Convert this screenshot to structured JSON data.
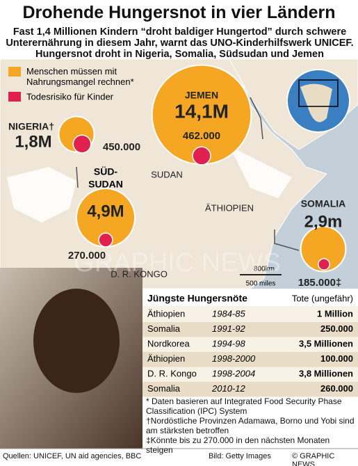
{
  "title": "Drohende Hungersnot in vier Ländern",
  "subtitle": "Fast 1,4 Millionen Kindern “droht baldiger Hungertod” durch schwere Unterernährung in diesem Jahr, warnt das UNO-Kinderhilfswerk UNICEF. Hungersnot droht in Nigeria, Somalia, Südsudan und Jemen",
  "legend": [
    "Menschen müssen mit Nahrungsmangel rechnen*",
    "Todesrisiko für Kinder"
  ],
  "countries": [
    {
      "name": "NIGERIA†",
      "value": 1800000,
      "value_label": "1,8M",
      "at_risk": 450000,
      "at_risk_label": "450.000"
    },
    {
      "name": "SÜD-SUDAN",
      "value": 4900000,
      "value_label": "4,9M",
      "at_risk": 270000,
      "at_risk_label": "270.000"
    },
    {
      "name": "JEMEN",
      "value": 14100000,
      "value_label": "14,1M",
      "at_risk": 462000,
      "at_risk_label": "462.000"
    },
    {
      "name": "SOMALIA",
      "value": 2900000,
      "value_label": "2,9m",
      "at_risk": 185000,
      "at_risk_label": "185.000‡"
    }
  ],
  "map_labels": [
    "SUDAN",
    "ÄTHIOPIEN",
    "D. R. KONGO"
  ],
  "scale": [
    "800km",
    "500 miles"
  ],
  "watermark": "GRAPHIC NEWS",
  "table": {
    "title": "Jüngste Hungersnöte",
    "column": "Tote (ungefähr)",
    "rows": [
      [
        "Äthiopien",
        "1984-85",
        "1 Million"
      ],
      [
        "Somalia",
        "1991-92",
        "250.000"
      ],
      [
        "Nordkorea",
        "1994-98",
        "3,5 Millionen"
      ],
      [
        "Äthiopien",
        "1998-2000",
        "100.000"
      ],
      [
        "D. R. Kongo",
        "1998-2004",
        "3,8 Millionen"
      ],
      [
        "Somalia",
        "2010-12",
        "260.000"
      ]
    ]
  },
  "notes": [
    "* Daten basieren auf Integrated Food Security Phase Classification (IPC) System",
    "†Nordöstliche Provinzen Adamawa, Borno und Yobi sind am stärksten betroffen",
    "‡Könnte bis zu 270.000 in den nächsten Monaten steigen"
  ],
  "footer": {
    "sources": "Quellen: UNICEF, UN aid agencies, BBC",
    "credit": "Bild: Getty Images",
    "copyright": "© GRAPHIC NEWS"
  }
}
